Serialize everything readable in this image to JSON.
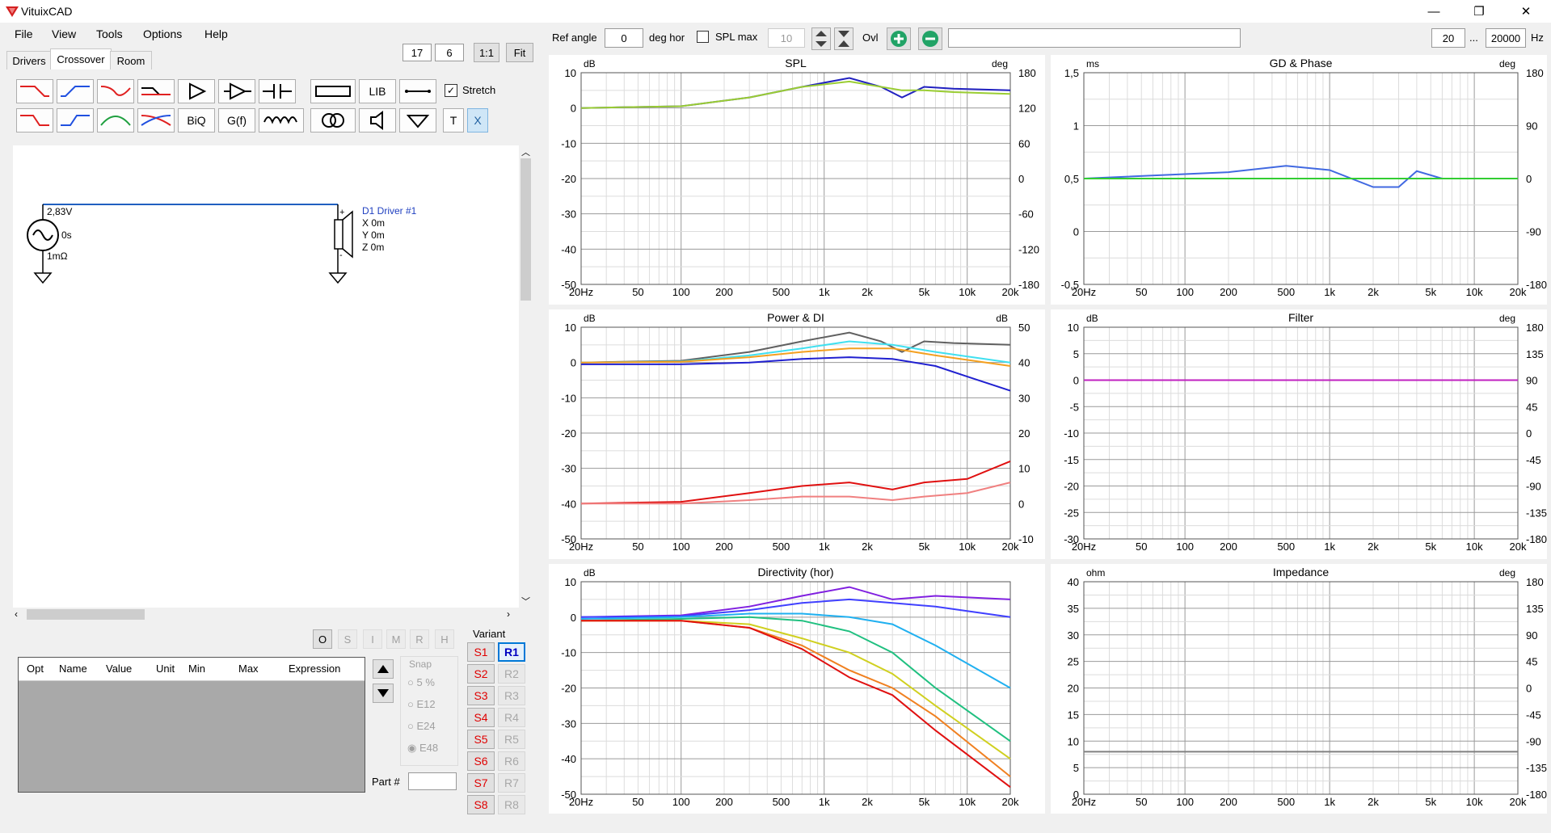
{
  "app": {
    "title": "VituixCAD"
  },
  "window_controls": {
    "minimize": "—",
    "maximize": "❐",
    "close": "✕"
  },
  "menu": {
    "items": [
      "File",
      "View",
      "Tools",
      "Options",
      "Help"
    ]
  },
  "tabs": [
    "Drivers",
    "Crossover",
    "Room"
  ],
  "view_controls": {
    "grid_a": "17",
    "grid_b": "6",
    "one_to_one": "1:1",
    "fit": "Fit"
  },
  "toolbar_tools": {
    "lib": "LIB",
    "biq": "BiQ",
    "gf": "G(f)",
    "t": "T",
    "x": "X",
    "stretch_label": "Stretch"
  },
  "schematic": {
    "source_voltage": "2,83V",
    "source_delay": "0s",
    "source_resistance": "1mΩ",
    "driver_name": "D1 Driver #1",
    "driver_x": "X 0m",
    "driver_y": "Y 0m",
    "driver_z": "Z 0m",
    "plus": "+",
    "minus": "-"
  },
  "opt_buttons": [
    "O",
    "S",
    "I",
    "M",
    "R",
    "H"
  ],
  "parts_table": {
    "columns": [
      "Opt",
      "Name",
      "Value",
      "Unit",
      "Min",
      "Max",
      "Expression"
    ]
  },
  "snap": {
    "label": "Snap",
    "options": [
      "5 %",
      "E12",
      "E24",
      "E48"
    ],
    "selected": "E48"
  },
  "variant": {
    "label": "Variant",
    "s": [
      "S1",
      "S2",
      "S3",
      "S4",
      "S5",
      "S6",
      "S7",
      "S8"
    ],
    "r": [
      "R1",
      "R2",
      "R3",
      "R4",
      "R5",
      "R6",
      "R7",
      "R8"
    ],
    "selected": "R1"
  },
  "part_no": {
    "label": "Part #",
    "value": ""
  },
  "top_controls": {
    "ref_angle_label": "Ref angle",
    "ref_angle_value": "0",
    "deg_hor_label": "deg hor",
    "spl_max_label": "SPL max",
    "spl_max_value": "10",
    "ovl_label": "Ovl",
    "f_min": "20",
    "ellipsis": "...",
    "f_max": "20000",
    "hz_label": "Hz"
  },
  "freq_ticks": [
    "20Hz",
    "50",
    "100",
    "200",
    "500",
    "1k",
    "2k",
    "5k",
    "10k",
    "20k"
  ],
  "colors": {
    "accent_green": "#21a366",
    "bg": "#f0f0f0",
    "trace_blue": "#2020c0",
    "trace_green": "#9acd32",
    "trace_red": "#e01010"
  },
  "charts": [
    {
      "id": "spl",
      "title": "SPL",
      "left_unit": "dB",
      "right_unit": "deg",
      "left_ticks": [
        "10",
        "0",
        "-10",
        "-20",
        "-30",
        "-40",
        "-50"
      ],
      "right_ticks": [
        "180",
        "120",
        "60",
        "0",
        "-60",
        "-120",
        "-180"
      ]
    },
    {
      "id": "gd",
      "title": "GD & Phase",
      "left_unit": "ms",
      "right_unit": "deg",
      "left_ticks": [
        "1,5",
        "1",
        "0,5",
        "0",
        "-0,5"
      ],
      "right_ticks": [
        "180",
        "90",
        "0",
        "-90",
        "-180"
      ]
    },
    {
      "id": "power",
      "title": "Power & DI",
      "left_unit": "dB",
      "right_unit": "dB",
      "left_ticks": [
        "10",
        "0",
        "-10",
        "-20",
        "-30",
        "-40",
        "-50"
      ],
      "right_ticks": [
        "50",
        "40",
        "30",
        "20",
        "10",
        "0",
        "-10"
      ]
    },
    {
      "id": "filter",
      "title": "Filter",
      "left_unit": "dB",
      "right_unit": "deg",
      "left_ticks": [
        "10",
        "5",
        "0",
        "-5",
        "-10",
        "-15",
        "-20",
        "-25",
        "-30"
      ],
      "right_ticks": [
        "180",
        "135",
        "90",
        "45",
        "0",
        "-45",
        "-90",
        "-135",
        "-180"
      ]
    },
    {
      "id": "dir",
      "title": "Directivity (hor)",
      "left_unit": "dB",
      "right_unit": "",
      "left_ticks": [
        "10",
        "0",
        "-10",
        "-20",
        "-30",
        "-40",
        "-50"
      ],
      "right_ticks": []
    },
    {
      "id": "imp",
      "title": "Impedance",
      "left_unit": "ohm",
      "right_unit": "deg",
      "left_ticks": [
        "40",
        "35",
        "30",
        "25",
        "20",
        "15",
        "10",
        "5",
        "0"
      ],
      "right_ticks": [
        "180",
        "135",
        "90",
        "45",
        "0",
        "-45",
        "-90",
        "-135",
        "-180"
      ]
    }
  ],
  "chart_data": [
    {
      "type": "line",
      "title": "SPL",
      "xlabel": "",
      "ylabel": "dB",
      "xscale": "log",
      "xlim": [
        20,
        20000
      ],
      "ylim": [
        -50,
        10
      ],
      "grid": true,
      "series": [
        {
          "color": "#2020c0",
          "x": [
            20,
            100,
            300,
            700,
            1500,
            2500,
            3500,
            5000,
            8000,
            20000
          ],
          "values": [
            0,
            0.5,
            3,
            6,
            8.5,
            6,
            3,
            6,
            5.5,
            5
          ]
        },
        {
          "color": "#9acd32",
          "x": [
            20,
            100,
            300,
            700,
            1500,
            2500,
            3500,
            5000,
            8000,
            20000
          ],
          "values": [
            0,
            0.5,
            3,
            6,
            7.5,
            6,
            5,
            5,
            4.5,
            4
          ]
        }
      ]
    },
    {
      "type": "line",
      "title": "GD & Phase",
      "xlabel": "",
      "ylabel": "ms",
      "xscale": "log",
      "xlim": [
        20,
        20000
      ],
      "ylim": [
        -0.5,
        1.5
      ],
      "grid": true,
      "series": [
        {
          "color": "#4169e1",
          "x": [
            20,
            200,
            500,
            1000,
            2000,
            3000,
            4000,
            6000,
            10000,
            20000
          ],
          "values": [
            0.5,
            0.56,
            0.62,
            0.58,
            0.42,
            0.42,
            0.57,
            0.5,
            0.5,
            0.5
          ]
        },
        {
          "color": "#32cd32",
          "x": [
            20,
            20000
          ],
          "values": [
            0.5,
            0.5
          ]
        }
      ]
    },
    {
      "type": "line",
      "title": "Power & DI",
      "xlabel": "",
      "ylabel": "dB",
      "xscale": "log",
      "xlim": [
        20,
        20000
      ],
      "ylim": [
        -50,
        10
      ],
      "grid": true,
      "series": [
        {
          "color": "#606060",
          "x": [
            20,
            100,
            300,
            700,
            1500,
            2500,
            3500,
            5000,
            8000,
            20000
          ],
          "values": [
            0,
            0.5,
            3,
            6,
            8.5,
            6,
            3,
            6,
            5.5,
            5
          ]
        },
        {
          "color": "#40e0f0",
          "x": [
            20,
            100,
            300,
            700,
            1500,
            3000,
            6000,
            20000
          ],
          "values": [
            0,
            0.3,
            2,
            4,
            6,
            5,
            3,
            0
          ]
        },
        {
          "color": "#f4a020",
          "x": [
            20,
            100,
            300,
            700,
            1500,
            3000,
            6000,
            20000
          ],
          "values": [
            0,
            0.2,
            1.5,
            3,
            4,
            4,
            2,
            -1
          ]
        },
        {
          "color": "#2020d0",
          "x": [
            20,
            100,
            300,
            700,
            1500,
            3000,
            6000,
            10000,
            20000
          ],
          "values": [
            -0.5,
            -0.5,
            0,
            1,
            1.5,
            1,
            -1,
            -4,
            -8
          ]
        },
        {
          "color": "#e01010",
          "x": [
            20,
            100,
            300,
            700,
            1500,
            3000,
            5000,
            10000,
            20000
          ],
          "values": [
            -40,
            -39.5,
            -37,
            -35,
            -34,
            -36,
            -34,
            -33,
            -28
          ]
        },
        {
          "color": "#f08080",
          "x": [
            20,
            100,
            300,
            700,
            1500,
            3000,
            5000,
            10000,
            20000
          ],
          "values": [
            -40,
            -40,
            -39,
            -38,
            -38,
            -39,
            -38,
            -37,
            -34
          ]
        }
      ]
    },
    {
      "type": "line",
      "title": "Filter",
      "xlabel": "",
      "ylabel": "dB",
      "xscale": "log",
      "xlim": [
        20,
        20000
      ],
      "ylim": [
        -30,
        10
      ],
      "grid": true,
      "series": [
        {
          "color": "#2040e0",
          "x": [
            20,
            20000
          ],
          "values": [
            0,
            0
          ]
        },
        {
          "color": "#c020c0",
          "x": [
            20,
            20000
          ],
          "values": [
            0,
            0
          ]
        }
      ]
    },
    {
      "type": "line",
      "title": "Directivity (hor)",
      "xlabel": "",
      "ylabel": "dB",
      "xscale": "log",
      "xlim": [
        20,
        20000
      ],
      "ylim": [
        -50,
        10
      ],
      "grid": true,
      "series": [
        {
          "color": "#8020e0",
          "x": [
            20,
            100,
            300,
            700,
            1500,
            3000,
            6000,
            20000
          ],
          "values": [
            0,
            0.5,
            3,
            6,
            8.5,
            5,
            6,
            5
          ]
        },
        {
          "color": "#4040ff",
          "x": [
            20,
            100,
            300,
            700,
            1500,
            3000,
            6000,
            20000
          ],
          "values": [
            0,
            0.3,
            2,
            4,
            5,
            4,
            3,
            0
          ]
        },
        {
          "color": "#20b0f0",
          "x": [
            20,
            100,
            300,
            700,
            1500,
            3000,
            6000,
            20000
          ],
          "values": [
            -0.5,
            0,
            1,
            1,
            0,
            -2,
            -8,
            -20
          ]
        },
        {
          "color": "#20c080",
          "x": [
            20,
            100,
            300,
            700,
            1500,
            3000,
            6000,
            20000
          ],
          "values": [
            -1,
            -0.5,
            0,
            -1,
            -4,
            -10,
            -20,
            -35
          ]
        },
        {
          "color": "#d0d020",
          "x": [
            20,
            100,
            300,
            700,
            1500,
            3000,
            6000,
            20000
          ],
          "values": [
            -1,
            -1,
            -2,
            -6,
            -10,
            -16,
            -25,
            -40
          ]
        },
        {
          "color": "#f08020",
          "x": [
            20,
            100,
            300,
            700,
            1500,
            3000,
            6000,
            20000
          ],
          "values": [
            -1,
            -1,
            -3,
            -8,
            -15,
            -20,
            -28,
            -45
          ]
        },
        {
          "color": "#e01010",
          "x": [
            20,
            100,
            300,
            700,
            1500,
            3000,
            6000,
            20000
          ],
          "values": [
            -1,
            -1,
            -3,
            -9,
            -17,
            -22,
            -32,
            -48
          ]
        }
      ]
    },
    {
      "type": "line",
      "title": "Impedance",
      "xlabel": "",
      "ylabel": "ohm",
      "xscale": "log",
      "xlim": [
        20,
        20000
      ],
      "ylim": [
        0,
        40
      ],
      "grid": true,
      "series": [
        {
          "color": "#808080",
          "x": [
            20,
            20000
          ],
          "values": [
            8,
            8
          ]
        }
      ]
    }
  ]
}
